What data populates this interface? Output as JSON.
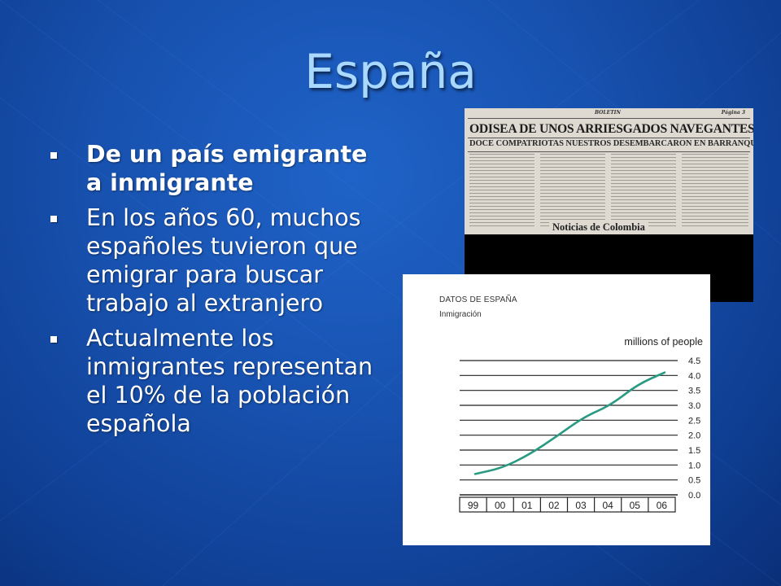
{
  "slide": {
    "title": "España",
    "bullets": [
      {
        "text": "De un país emigrante a inmigrante",
        "bold": true
      },
      {
        "text": "En los años 60, muchos españoles tuvieron que emigrar para buscar trabajo al extranjero",
        "bold": false
      },
      {
        "text": "Actualmente los inmigrantes representan el 10% de la población española",
        "bold": false
      }
    ]
  },
  "newspaper": {
    "top_center": "BOLETIN",
    "top_right": "Página 3",
    "headline": "ODISEA DE UNOS ARRIESGADOS NAVEGANTES ESPAÑOLES",
    "subheadline": "DOCE COMPATRIOTAS NUESTROS DESEMBARCARON EN BARRANQUILLA",
    "caption": "Noticias de Colombia"
  },
  "chart_data": {
    "type": "line",
    "title": "DATOS DE ESPAÑA",
    "subtitle": "Inmigración",
    "ylabel": "millions of people",
    "categories": [
      "99",
      "00",
      "01",
      "02",
      "03",
      "04",
      "05",
      "06"
    ],
    "x": [
      1999,
      2000,
      2001,
      2002,
      2003,
      2004,
      2005,
      2006
    ],
    "values": [
      0.7,
      0.9,
      1.35,
      1.95,
      2.6,
      3.0,
      3.7,
      4.1
    ],
    "y_ticks": [
      "4.5",
      "4.0",
      "3.5",
      "3.0",
      "2.5",
      "2.0",
      "1.5",
      "1.0",
      "0.5",
      "0.0"
    ],
    "ylim": [
      0,
      4.5
    ],
    "grid": true,
    "line_color": "#2a9a82"
  }
}
